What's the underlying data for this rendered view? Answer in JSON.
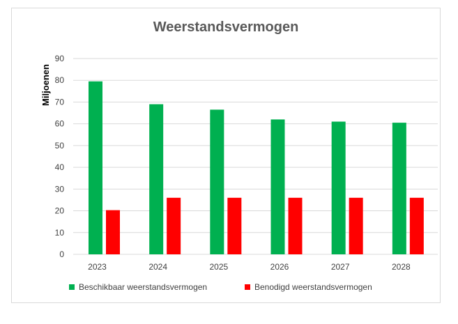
{
  "colors": {
    "available": "#00b050",
    "required": "#ff0000",
    "grid": "#d9d9d9",
    "text": "#404040"
  },
  "chart_data": {
    "type": "bar",
    "title": "Weerstandsvermogen",
    "xlabel": "",
    "ylabel": "Miljoenen",
    "ylim": [
      0,
      90
    ],
    "yticks": [
      0,
      10,
      20,
      30,
      40,
      50,
      60,
      70,
      80,
      90
    ],
    "grid": true,
    "legend": "bottom",
    "categories": [
      "2023",
      "2024",
      "2025",
      "2026",
      "2027",
      "2028"
    ],
    "series": [
      {
        "name": "Beschikbaar weerstandsvermogen",
        "color": "#00b050",
        "values": [
          79.5,
          69,
          66.5,
          62,
          61,
          60.5
        ]
      },
      {
        "name": "Benodigd weerstandsvermogen",
        "color": "#ff0000",
        "values": [
          20.3,
          26,
          26,
          26,
          26,
          26
        ]
      }
    ]
  }
}
